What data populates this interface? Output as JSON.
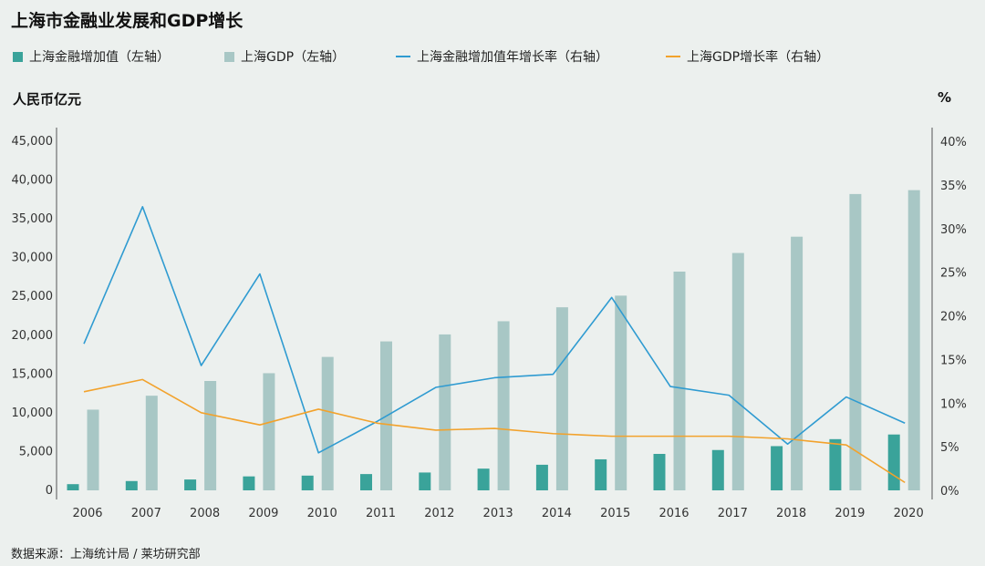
{
  "title": "上海市金融业发展和GDP增长",
  "legend": [
    {
      "label": "上海金融增加值（左轴）",
      "type": "bar",
      "color": "#3aa39a"
    },
    {
      "label": "上海GDP（左轴）",
      "type": "bar",
      "color": "#a8c7c5"
    },
    {
      "label": "上海金融增加值年增长率（右轴）",
      "type": "line",
      "color": "#2f9bd1"
    },
    {
      "label": "上海GDP增长率（右轴）",
      "type": "line",
      "color": "#f2a22c"
    }
  ],
  "unit_left": "人民币亿元",
  "unit_right": "%",
  "source": "数据来源：上海统计局 / 莱坊研究部",
  "chart_data": {
    "type": "bar",
    "categories": [
      "2006",
      "2007",
      "2008",
      "2009",
      "2010",
      "2011",
      "2012",
      "2013",
      "2014",
      "2015",
      "2016",
      "2017",
      "2018",
      "2019",
      "2020"
    ],
    "series": [
      {
        "name": "上海金融增加值（左轴）",
        "type": "bar",
        "axis": "left",
        "color": "#3aa39a",
        "values": [
          800,
          1200,
          1400,
          1800,
          1900,
          2100,
          2300,
          2800,
          3300,
          4000,
          4700,
          5200,
          5700,
          6600,
          7200
        ]
      },
      {
        "name": "上海GDP（左轴）",
        "type": "bar",
        "axis": "left",
        "color": "#a8c7c5",
        "values": [
          10400,
          12200,
          14100,
          15100,
          17200,
          19200,
          20100,
          21800,
          23600,
          25100,
          28200,
          30600,
          32700,
          38200,
          38700
        ]
      },
      {
        "name": "上海金融增加值年增长率（右轴）",
        "type": "line",
        "axis": "right",
        "color": "#2f9bd1",
        "values": [
          16.8,
          32.5,
          14.3,
          24.8,
          4.3,
          7.9,
          11.8,
          12.9,
          13.3,
          22.1,
          11.9,
          10.9,
          5.3,
          10.7,
          7.7
        ]
      },
      {
        "name": "上海GDP增长率（右轴）",
        "type": "line",
        "axis": "right",
        "color": "#f2a22c",
        "values": [
          11.3,
          12.7,
          8.9,
          7.5,
          9.3,
          7.7,
          6.9,
          7.1,
          6.5,
          6.2,
          6.2,
          6.2,
          5.9,
          5.2,
          0.9
        ]
      }
    ],
    "y_left": {
      "min": 0,
      "max": 45000,
      "ticks": [
        0,
        5000,
        10000,
        15000,
        20000,
        25000,
        30000,
        35000,
        40000,
        45000
      ],
      "tick_labels": [
        "0",
        "5,000",
        "10,000",
        "15,000",
        "20,000",
        "25,000",
        "30,000",
        "35,000",
        "40,000",
        "45,000"
      ]
    },
    "y_right": {
      "min": 0,
      "max": 40,
      "ticks": [
        0,
        5,
        10,
        15,
        20,
        25,
        30,
        35,
        40
      ],
      "tick_labels": [
        "0%",
        "5%",
        "10%",
        "15%",
        "20%",
        "25%",
        "30%",
        "35%",
        "40%"
      ]
    },
    "grid": false,
    "legend_position": "top"
  }
}
